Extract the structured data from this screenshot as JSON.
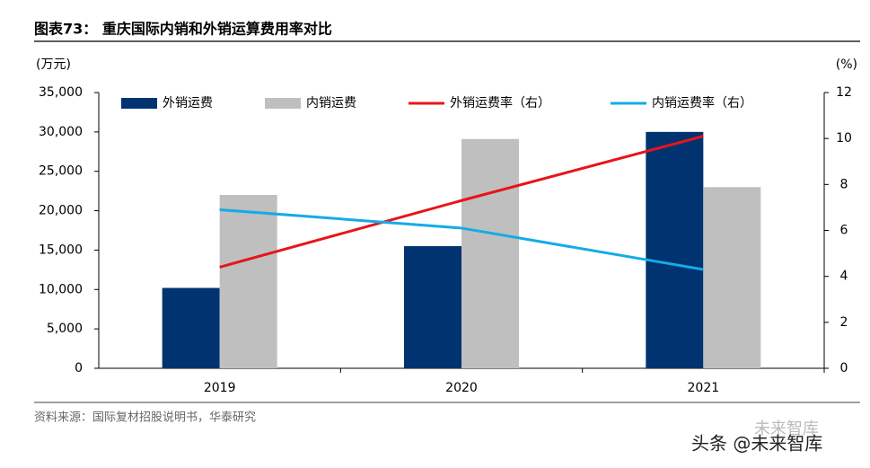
{
  "chart_data": {
    "type": "bar-line",
    "title": "图表73：  重庆国际内销和外销运算费用率对比",
    "y_label": "(万元)",
    "y2_label": "(%)",
    "categories": [
      "2019",
      "2020",
      "2021"
    ],
    "series": [
      {
        "name": "外销运费",
        "type": "bar",
        "color": "#003370",
        "values": [
          10200,
          15500,
          30000
        ]
      },
      {
        "name": "内销运费",
        "type": "bar",
        "color": "#bfbfbf",
        "values": [
          22000,
          29100,
          23000
        ]
      },
      {
        "name": "外销运费率（右）",
        "type": "line",
        "axis": "y2",
        "color": "#e8141b",
        "values": [
          4.4,
          7.3,
          10.1
        ]
      },
      {
        "name": "内销运费率（右）",
        "type": "line",
        "axis": "y2",
        "color": "#15abe8",
        "values": [
          6.9,
          6.1,
          4.3
        ]
      }
    ],
    "ylim": [
      0,
      35000
    ],
    "yticks": [
      0,
      {
        "value": 5000,
        "label": "5,000"
      },
      {
        "value": 10000,
        "label": "10,000"
      },
      {
        "value": 15000,
        "label": "15,000"
      },
      {
        "value": 20000,
        "label": "20,000"
      },
      {
        "value": 25000,
        "label": "25,000"
      },
      {
        "value": 30000,
        "label": "30,000"
      },
      {
        "value": 35000,
        "label": "35,000"
      }
    ],
    "y2lim": [
      0,
      12
    ],
    "y2ticks": [
      0,
      2,
      4,
      6,
      8,
      10,
      12
    ],
    "source": "资料来源：国际复材招股说明书，华泰研究",
    "watermark": [
      "未来智库",
      "头条 @未来智库"
    ]
  }
}
